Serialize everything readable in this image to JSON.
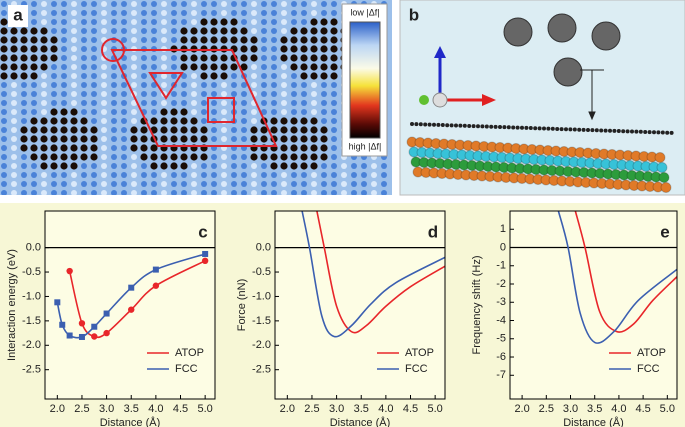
{
  "panels": {
    "a": {
      "label": "a",
      "colorbar": {
        "top": "low |Δf|",
        "bottom": "high |Δf|"
      }
    },
    "b": {
      "label": "b"
    }
  },
  "chart_data": [
    {
      "type": "line",
      "label": "c",
      "ylabel": "Interaction energy (eV)",
      "xlabel": "Distance (Å)",
      "xlim": [
        1.75,
        5.2
      ],
      "ylim": [
        -3.1,
        0.75
      ],
      "xticks": [
        {
          "value": 2,
          "label": "2.0"
        },
        2.5,
        {
          "value": 3,
          "label": "3.0"
        },
        3.5,
        {
          "value": 4,
          "label": "4.0"
        },
        4.5,
        {
          "value": 5,
          "label": "5.0"
        }
      ],
      "yticks": [
        {
          "value": 0,
          "label": "0.0"
        },
        -0.5,
        {
          "value": -1,
          "label": "-1.0"
        },
        -1.5,
        {
          "value": -2,
          "label": "-2.0"
        },
        -2.5
      ],
      "zero_line": true,
      "legend": "lower right",
      "series": [
        {
          "name": "ATOP",
          "color": "#e8262a",
          "marker": "circle",
          "x": [
            2.25,
            2.5,
            2.75,
            3.0,
            3.5,
            4.0,
            5.0
          ],
          "values": [
            -0.48,
            -1.55,
            -1.82,
            -1.75,
            -1.27,
            -0.78,
            -0.27
          ]
        },
        {
          "name": "FCC",
          "color": "#3b5fb0",
          "marker": "square",
          "x": [
            2.0,
            2.1,
            2.25,
            2.5,
            2.75,
            3.0,
            3.5,
            4.0,
            5.0
          ],
          "values": [
            -1.12,
            -1.58,
            -1.8,
            -1.83,
            -1.62,
            -1.35,
            -0.82,
            -0.45,
            -0.13
          ]
        }
      ]
    },
    {
      "type": "line",
      "label": "d",
      "ylabel": "Force (nN)",
      "xlabel": "Distance (Å)",
      "xlim": [
        1.75,
        5.2
      ],
      "ylim": [
        -3.1,
        0.75
      ],
      "xticks": [
        {
          "value": 2,
          "label": "2.0"
        },
        2.5,
        {
          "value": 3,
          "label": "3.0"
        },
        3.5,
        {
          "value": 4,
          "label": "4.0"
        },
        4.5,
        {
          "value": 5,
          "label": "5.0"
        }
      ],
      "yticks": [
        {
          "value": 0,
          "label": "0.0"
        },
        -0.5,
        {
          "value": -1,
          "label": "-1.0"
        },
        -1.5,
        {
          "value": -2,
          "label": "-2.0"
        },
        -2.5
      ],
      "zero_line": true,
      "legend": "lower right",
      "series": [
        {
          "name": "ATOP",
          "color": "#e8262a",
          "x": [
            2.6,
            2.75,
            3.0,
            3.3,
            3.6,
            4.0,
            4.5,
            5.2
          ],
          "values": [
            0.75,
            0,
            -1.2,
            -1.72,
            -1.6,
            -1.2,
            -0.8,
            -0.38
          ]
        },
        {
          "name": "FCC",
          "color": "#3b5fb0",
          "x": [
            2.3,
            2.45,
            2.7,
            2.95,
            3.3,
            3.7,
            4.2,
            5.2
          ],
          "values": [
            0.75,
            0,
            -1.4,
            -1.82,
            -1.6,
            -1.15,
            -0.72,
            -0.2
          ]
        }
      ]
    },
    {
      "type": "line",
      "label": "e",
      "ylabel": "Frequency shift (Hz)",
      "xlabel": "Distance (Å)",
      "xlim": [
        1.75,
        5.2
      ],
      "ylim": [
        -8.3,
        2.0
      ],
      "xticks": [
        {
          "value": 2,
          "label": "2.0"
        },
        2.5,
        {
          "value": 3,
          "label": "3.0"
        },
        3.5,
        {
          "value": 4,
          "label": "4.0"
        },
        4.5,
        {
          "value": 5,
          "label": "5.0"
        }
      ],
      "yticks": [
        1,
        0,
        -1,
        -2,
        -3,
        -4,
        -5,
        -6,
        -7
      ],
      "zero_line": true,
      "legend": "lower right",
      "series": [
        {
          "name": "ATOP",
          "color": "#e8262a",
          "x": [
            3.1,
            3.3,
            3.6,
            3.95,
            4.3,
            4.7,
            5.2
          ],
          "values": [
            2.0,
            0,
            -3.5,
            -4.6,
            -4.2,
            -2.9,
            -1.6
          ]
        },
        {
          "name": "FCC",
          "color": "#3b5fb0",
          "x": [
            2.75,
            2.95,
            3.2,
            3.5,
            3.9,
            4.4,
            5.2
          ],
          "values": [
            2.0,
            0,
            -3.6,
            -5.2,
            -4.6,
            -2.9,
            -1.2
          ]
        }
      ]
    }
  ]
}
